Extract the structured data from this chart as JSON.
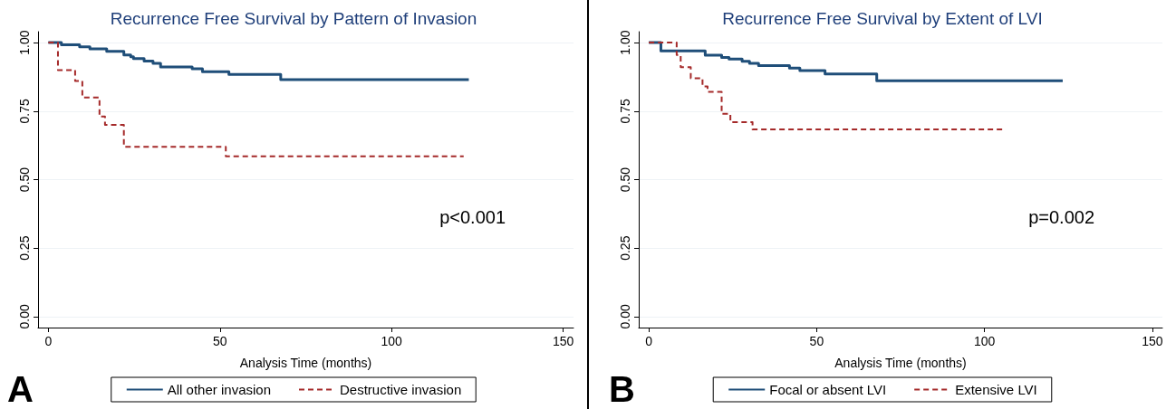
{
  "chart_data": [
    {
      "type": "step",
      "title": "Recurrence Free Survival by Pattern of Invasion",
      "xlabel": "Analysis Time (months)",
      "xlim": [
        -3,
        153
      ],
      "xticks": [
        0,
        50,
        100,
        150
      ],
      "ylim": [
        -0.04,
        1.04
      ],
      "yticks": [
        {
          "value": 0,
          "label": "0.00"
        },
        {
          "value": 0.25,
          "label": "0.25"
        },
        {
          "value": 0.5,
          "label": "0.50"
        },
        {
          "value": 0.75,
          "label": "0.75"
        },
        {
          "value": 1,
          "label": "1.00"
        }
      ],
      "grid": "y",
      "legend": "bottom",
      "annotations": [
        "p<0.001",
        "A"
      ],
      "series": [
        {
          "name": "All other invasion",
          "color": "#1f4e79",
          "line_style": "solid",
          "x": [
            0,
            3.8,
            9.1,
            12.1,
            17,
            22,
            24,
            24.8,
            27.9,
            30.5,
            32.7,
            41.9,
            44.9,
            52.6,
            67.7,
            122.5
          ],
          "values": [
            1,
            0.992,
            0.985,
            0.977,
            0.968,
            0.955,
            0.948,
            0.942,
            0.933,
            0.924,
            0.911,
            0.905,
            0.894,
            0.884,
            0.865,
            0.865
          ]
        },
        {
          "name": "Destructive invasion",
          "color": "#a52a2a",
          "line_style": "dashed",
          "x": [
            0,
            2.8,
            7.8,
            9.9,
            14.9,
            16.5,
            22,
            51.7,
            121
          ],
          "values": [
            1,
            0.9,
            0.86,
            0.8,
            0.73,
            0.7,
            0.62,
            0.585,
            0.585
          ]
        }
      ]
    },
    {
      "type": "step",
      "title": "Recurrence Free Survival by Extent of LVI",
      "xlabel": "Analysis Time (months)",
      "xlim": [
        -3,
        153
      ],
      "xticks": [
        0,
        50,
        100,
        150
      ],
      "ylim": [
        -0.04,
        1.04
      ],
      "yticks": [
        {
          "value": 0,
          "label": "0.00"
        },
        {
          "value": 0.25,
          "label": "0.25"
        },
        {
          "value": 0.5,
          "label": "0.50"
        },
        {
          "value": 0.75,
          "label": "0.75"
        },
        {
          "value": 1,
          "label": "1.00"
        }
      ],
      "grid": "y",
      "legend": "bottom",
      "annotations": [
        "p=0.002",
        "B"
      ],
      "series": [
        {
          "name": "Focal or absent LVI",
          "color": "#1f4e79",
          "line_style": "solid",
          "x": [
            0,
            3.6,
            16.8,
            21.7,
            23.9,
            27.8,
            30,
            32.7,
            41.9,
            45,
            52.5,
            67.9,
            123.3
          ],
          "values": [
            1,
            0.97,
            0.954,
            0.946,
            0.94,
            0.932,
            0.924,
            0.916,
            0.907,
            0.898,
            0.886,
            0.861,
            0.861
          ]
        },
        {
          "name": "Extensive LVI",
          "color": "#a52a2a",
          "line_style": "dashed",
          "x": [
            0,
            8.3,
            9.5,
            12.5,
            16,
            17.5,
            21.7,
            24.3,
            30.9,
            105.4
          ],
          "values": [
            1,
            0.955,
            0.91,
            0.87,
            0.84,
            0.82,
            0.74,
            0.71,
            0.683,
            0.683
          ]
        }
      ]
    }
  ]
}
